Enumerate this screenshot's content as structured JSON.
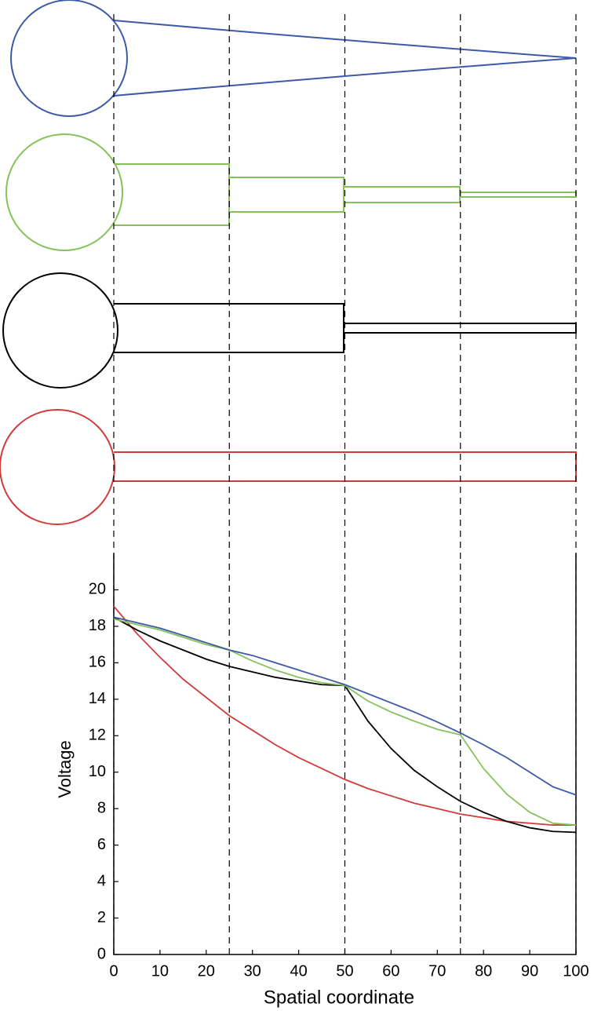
{
  "chart_data": {
    "type": "line",
    "x_label": "Spatial coordinate",
    "y_label": "Voltage",
    "x": [
      0,
      5,
      10,
      15,
      20,
      25,
      30,
      35,
      40,
      45,
      50,
      55,
      60,
      65,
      70,
      75,
      80,
      85,
      90,
      95,
      100
    ],
    "series": [
      {
        "color": "#d03c3c",
        "values": [
          19.1,
          17.6,
          16.3,
          15.1,
          14.1,
          13.1,
          12.3,
          11.5,
          10.8,
          10.2,
          9.6,
          9.1,
          8.7,
          8.3,
          8.0,
          7.7,
          7.5,
          7.3,
          7.2,
          7.1,
          7.1
        ]
      },
      {
        "color": "#000000",
        "values": [
          18.5,
          17.8,
          17.2,
          16.7,
          16.2,
          15.8,
          15.5,
          15.2,
          15.0,
          14.8,
          14.75,
          12.8,
          11.3,
          10.1,
          9.2,
          8.4,
          7.8,
          7.3,
          6.95,
          6.75,
          6.7
        ]
      },
      {
        "color": "#86c25a",
        "values": [
          18.4,
          18.1,
          17.8,
          17.4,
          17.0,
          16.7,
          16.1,
          15.6,
          15.2,
          14.9,
          14.75,
          13.9,
          13.3,
          12.8,
          12.35,
          12.05,
          10.2,
          8.8,
          7.8,
          7.2,
          7.1
        ]
      },
      {
        "color": "#3d5aa8",
        "values": [
          18.5,
          18.2,
          17.9,
          17.5,
          17.1,
          16.7,
          16.4,
          16.0,
          15.6,
          15.2,
          14.8,
          14.3,
          13.8,
          13.3,
          12.75,
          12.15,
          11.5,
          10.8,
          10.0,
          9.2,
          8.75
        ]
      }
    ],
    "xlim": [
      0,
      100
    ],
    "ylim": [
      0,
      22
    ],
    "xticks": [
      0,
      10,
      20,
      30,
      40,
      50,
      60,
      70,
      80,
      90,
      100
    ],
    "yticks": [
      0,
      2,
      4,
      6,
      8,
      10,
      12,
      14,
      16,
      18,
      20
    ],
    "vlines": [
      0,
      25,
      50,
      75,
      100
    ]
  }
}
